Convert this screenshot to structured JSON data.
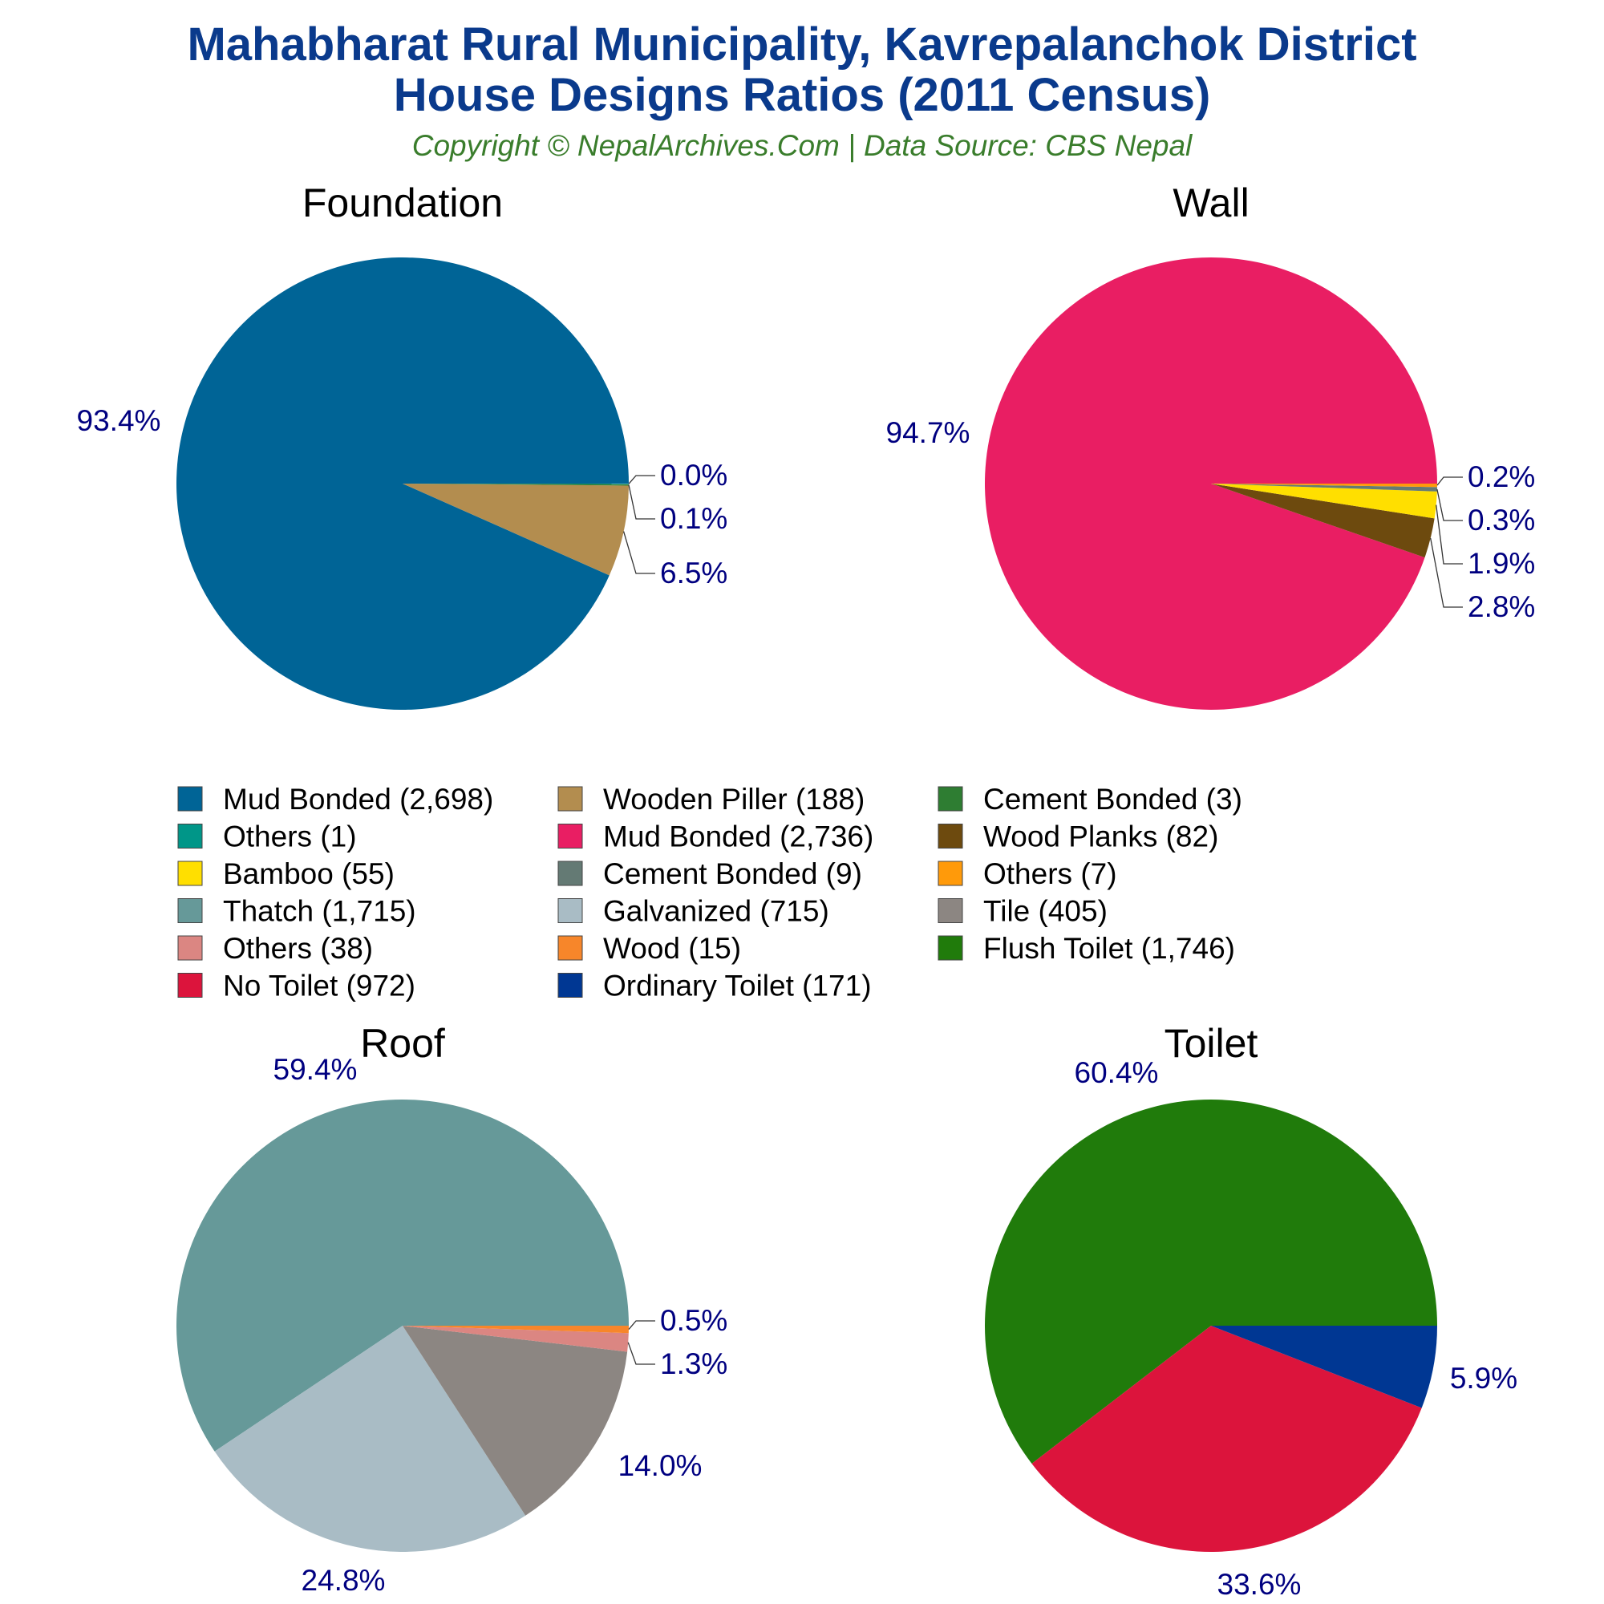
{
  "title_line1": "Mahabharat Rural Municipality, Kavrepalanchok District",
  "title_line2": "House Designs Ratios (2011 Census)",
  "subtitle": "Copyright © NepalArchives.Com | Data Source: CBS Nepal",
  "chart_data": [
    {
      "type": "pie",
      "title": "Foundation",
      "slices": [
        {
          "label": "Mud Bonded",
          "value": 2698,
          "pct": "93.4%",
          "color": "#006496"
        },
        {
          "label": "Wooden Piller",
          "value": 188,
          "pct": "6.5%",
          "color": "#b38d4f"
        },
        {
          "label": "Cement Bonded",
          "value": 3,
          "pct": "0.1%",
          "color": "#2e7d32"
        },
        {
          "label": "Others",
          "value": 1,
          "pct": "0.0%",
          "color": "#009688"
        }
      ]
    },
    {
      "type": "pie",
      "title": "Wall",
      "slices": [
        {
          "label": "Mud Bonded",
          "value": 2736,
          "pct": "94.7%",
          "color": "#e91e63"
        },
        {
          "label": "Wood Planks",
          "value": 82,
          "pct": "2.8%",
          "color": "#6d4a0e"
        },
        {
          "label": "Bamboo",
          "value": 55,
          "pct": "1.9%",
          "color": "#ffdf00"
        },
        {
          "label": "Cement Bonded",
          "value": 9,
          "pct": "0.3%",
          "color": "#647a74"
        },
        {
          "label": "Others",
          "value": 7,
          "pct": "0.2%",
          "color": "#ff9a0a"
        }
      ]
    },
    {
      "type": "pie",
      "title": "Roof",
      "slices": [
        {
          "label": "Thatch",
          "value": 1715,
          "pct": "59.4%",
          "color": "#669999"
        },
        {
          "label": "Galvanized",
          "value": 715,
          "pct": "24.8%",
          "color": "#a9bcc5"
        },
        {
          "label": "Tile",
          "value": 405,
          "pct": "14.0%",
          "color": "#8c8682"
        },
        {
          "label": "Others",
          "value": 38,
          "pct": "1.3%",
          "color": "#db8682"
        },
        {
          "label": "Wood",
          "value": 15,
          "pct": "0.5%",
          "color": "#f7862a"
        }
      ]
    },
    {
      "type": "pie",
      "title": "Toilet",
      "slices": [
        {
          "label": "Flush Toilet",
          "value": 1746,
          "pct": "60.4%",
          "color": "#207b0b"
        },
        {
          "label": "No Toilet",
          "value": 972,
          "pct": "33.6%",
          "color": "#dc143c"
        },
        {
          "label": "Ordinary Toilet",
          "value": 171,
          "pct": "5.9%",
          "color": "#003793"
        }
      ]
    }
  ],
  "legend": {
    "placement": "center",
    "items": [
      {
        "label": "Mud Bonded (2,698)",
        "color": "#006496"
      },
      {
        "label": "Wooden Piller (188)",
        "color": "#b38d4f"
      },
      {
        "label": "Cement Bonded (3)",
        "color": "#2e7d32"
      },
      {
        "label": "Others (1)",
        "color": "#009688"
      },
      {
        "label": "Mud Bonded (2,736)",
        "color": "#e91e63"
      },
      {
        "label": "Wood Planks (82)",
        "color": "#6d4a0e"
      },
      {
        "label": "Bamboo (55)",
        "color": "#ffdf00"
      },
      {
        "label": "Cement Bonded (9)",
        "color": "#647a74"
      },
      {
        "label": "Others (7)",
        "color": "#ff9a0a"
      },
      {
        "label": "Thatch (1,715)",
        "color": "#669999"
      },
      {
        "label": "Galvanized (715)",
        "color": "#a9bcc5"
      },
      {
        "label": "Tile (405)",
        "color": "#8c8682"
      },
      {
        "label": "Others (38)",
        "color": "#db8682"
      },
      {
        "label": "Wood (15)",
        "color": "#f7862a"
      },
      {
        "label": "Flush Toilet (1,746)",
        "color": "#207b0b"
      },
      {
        "label": "No Toilet (972)",
        "color": "#dc143c"
      },
      {
        "label": "Ordinary Toilet (171)",
        "color": "#003793"
      }
    ]
  }
}
